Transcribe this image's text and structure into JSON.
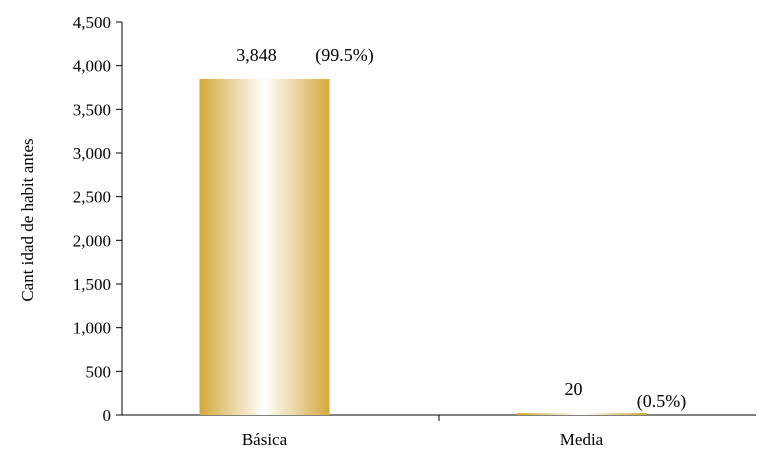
{
  "chart_data": {
    "type": "bar",
    "categories": [
      "Básica",
      "Media"
    ],
    "values": [
      3848,
      20
    ],
    "value_labels": [
      "3,848",
      "20"
    ],
    "percent_labels": [
      "(99.5%)",
      "(0.5%)"
    ],
    "ylabel": "Cant idad de habit antes",
    "xlabel": "",
    "title": "",
    "ylim": [
      0,
      4500
    ],
    "yticks": [
      0,
      500,
      1000,
      1500,
      2000,
      2500,
      3000,
      3500,
      4000,
      4500
    ],
    "ytick_labels": [
      "0",
      "500",
      "1,000",
      "1,500",
      "2,000",
      "2,500",
      "3,000",
      "3,500",
      "4,000",
      "4,500"
    ],
    "grid": false,
    "legend": "none",
    "bar_gradient": [
      "#d4a93a",
      "#ffffff",
      "#d4a93a"
    ]
  }
}
